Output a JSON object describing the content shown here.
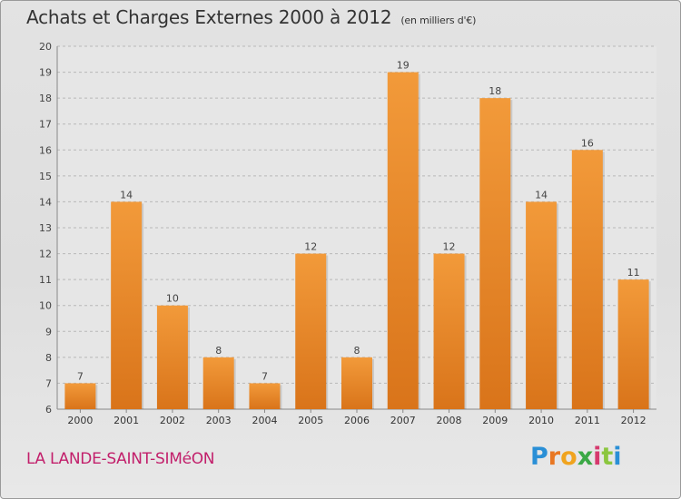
{
  "header": {
    "title": "Achats et Charges Externes 2000 à 2012",
    "unit": "(en milliers d'€)"
  },
  "footer": {
    "commune": "LA LANDE-SAINT-SIMéON",
    "logo": [
      "P",
      "r",
      "o",
      "x",
      "i",
      "t",
      "i"
    ]
  },
  "colors": {
    "bar": "#f29a3a",
    "bar_dark": "#d9741a",
    "grid": "#b8b8b8",
    "commune": "#c21f6b"
  },
  "chart_data": {
    "type": "bar",
    "title": "Achats et Charges Externes 2000 à 2012",
    "subtitle": "(en milliers d'€)",
    "categories": [
      "2000",
      "2001",
      "2002",
      "2003",
      "2004",
      "2005",
      "2006",
      "2007",
      "2008",
      "2009",
      "2010",
      "2011",
      "2012"
    ],
    "values": [
      7,
      14,
      10,
      8,
      7,
      12,
      8,
      19,
      12,
      18,
      14,
      16,
      11
    ],
    "ylim": [
      6,
      20
    ],
    "yticks": [
      6,
      7,
      8,
      9,
      10,
      11,
      12,
      13,
      14,
      15,
      16,
      17,
      18,
      19,
      20
    ],
    "grid": true,
    "data_labels": true
  }
}
